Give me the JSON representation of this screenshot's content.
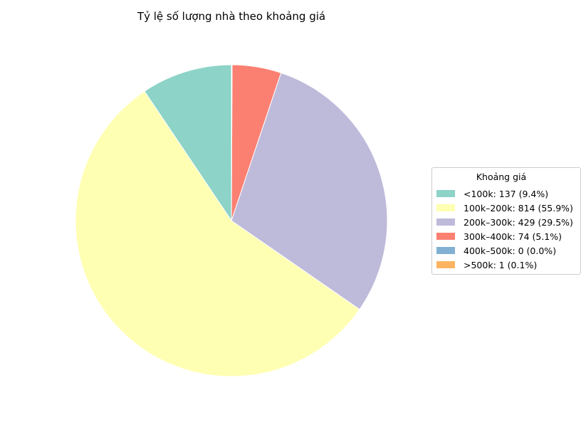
{
  "chart_data": {
    "type": "pie",
    "title": "Tỷ lệ số lượng nhà theo khoảng giá",
    "legend_title": "Khoảng giá",
    "legend_position": "right",
    "start_angle_deg": 90,
    "direction": "counterclockwise",
    "slices": [
      {
        "label": "<100k",
        "value": 137,
        "legend": "<100k: 137 (9.4%)",
        "color": "#8dd3c7"
      },
      {
        "label": "100k–200k",
        "value": 814,
        "legend": "100k–200k: 814 (55.9%)",
        "color": "#ffffb3"
      },
      {
        "label": "200k–300k",
        "value": 429,
        "legend": "200k–300k: 429 (29.5%)",
        "color": "#bebada"
      },
      {
        "label": "300k–400k",
        "value": 74,
        "legend": "300k–400k: 74 (5.1%)",
        "color": "#fb8072"
      },
      {
        "label": "400k–500k",
        "value": 0,
        "legend": "400k–500k: 0 (0.0%)",
        "color": "#80b1d3"
      },
      {
        "label": ">500k",
        "value": 1,
        "legend": ">500k: 1 (0.1%)",
        "color": "#fdb462"
      }
    ]
  }
}
